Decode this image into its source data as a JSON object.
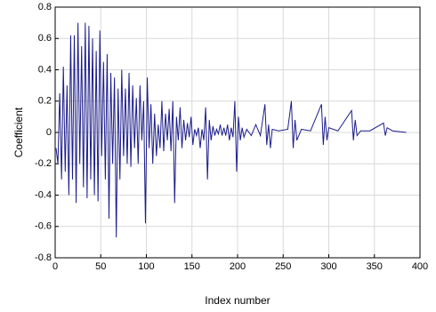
{
  "chart_data": {
    "type": "line",
    "x_label": "Index number",
    "y_label": "Coefficient",
    "color": "#1c1c8a",
    "grid": true,
    "xlim": [
      0,
      400
    ],
    "xticks": [
      0,
      50,
      100,
      150,
      200,
      250,
      300,
      350,
      400
    ],
    "ylim": [
      -0.8,
      0.8
    ],
    "yticks": [
      -0.8,
      -0.6,
      -0.4,
      -0.2,
      0,
      0.2,
      0.4,
      0.6,
      0.8
    ],
    "x": [
      1,
      3,
      5,
      7,
      9,
      11,
      13,
      15,
      17,
      19,
      21,
      23,
      25,
      27,
      29,
      31,
      33,
      35,
      37,
      39,
      41,
      43,
      45,
      47,
      49,
      51,
      53,
      55,
      57,
      59,
      61,
      63,
      65,
      67,
      69,
      71,
      73,
      75,
      77,
      79,
      81,
      83,
      85,
      87,
      89,
      91,
      93,
      95,
      97,
      99,
      101,
      103,
      105,
      107,
      109,
      111,
      113,
      115,
      117,
      119,
      121,
      123,
      125,
      127,
      129,
      131,
      133,
      135,
      137,
      139,
      141,
      143,
      145,
      147,
      149,
      151,
      153,
      155,
      157,
      159,
      161,
      163,
      165,
      167,
      169,
      171,
      173,
      175,
      177,
      179,
      181,
      183,
      185,
      187,
      189,
      191,
      193,
      195,
      197,
      199,
      201,
      203,
      205,
      207,
      210,
      215,
      220,
      225,
      230,
      232,
      234,
      236,
      238,
      245,
      255,
      259,
      261,
      263,
      265,
      270,
      280,
      292,
      294,
      296,
      298,
      300,
      310,
      325,
      327,
      329,
      331,
      335,
      345,
      360,
      362,
      364,
      370,
      385
    ],
    "values": [
      -0.1,
      -0.2,
      0.25,
      -0.3,
      0.42,
      -0.25,
      0.3,
      -0.4,
      0.62,
      -0.3,
      0.62,
      -0.45,
      0.7,
      -0.2,
      0.55,
      -0.35,
      0.7,
      -0.42,
      0.68,
      -0.3,
      0.6,
      -0.4,
      0.52,
      -0.44,
      0.65,
      -0.15,
      0.45,
      -0.3,
      0.5,
      -0.55,
      0.38,
      -0.2,
      0.35,
      -0.67,
      0.28,
      -0.3,
      0.4,
      -0.15,
      0.28,
      -0.2,
      0.38,
      -0.22,
      0.3,
      -0.1,
      0.22,
      -0.2,
      0.3,
      -0.05,
      0.2,
      -0.58,
      0.35,
      -0.1,
      0.18,
      -0.2,
      0.12,
      -0.15,
      0.05,
      -0.1,
      0.2,
      -0.12,
      0.12,
      -0.05,
      0.15,
      -0.12,
      0.2,
      -0.45,
      0.1,
      -0.05,
      0.16,
      -0.1,
      0.08,
      -0.05,
      0.06,
      -0.03,
      0.1,
      -0.08,
      0.02,
      -0.02,
      0.03,
      -0.1,
      0.02,
      -0.05,
      0.16,
      -0.3,
      0.08,
      -0.05,
      0.04,
      -0.02,
      0.02,
      -0.01,
      0.05,
      -0.02,
      0.03,
      -0.02,
      0.05,
      -0.05,
      0.03,
      -0.03,
      0.2,
      -0.25,
      0.1,
      -0.05,
      0.03,
      -0.03,
      0.02,
      -0.02,
      0.05,
      -0.02,
      0.18,
      -0.08,
      0.05,
      -0.1,
      0.02,
      0.01,
      0.02,
      0.2,
      -0.1,
      0.08,
      -0.05,
      0.02,
      0.01,
      0.18,
      -0.08,
      0.1,
      -0.05,
      0.03,
      0.01,
      0.14,
      -0.05,
      0.08,
      -0.02,
      0.01,
      0.01,
      0.06,
      -0.02,
      0.03,
      0.01,
      0
    ]
  }
}
